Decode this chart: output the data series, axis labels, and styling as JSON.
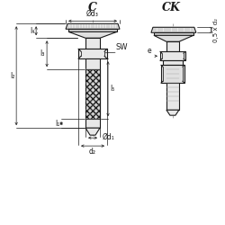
{
  "bg_color": "#ffffff",
  "line_color": "#1a1a1a",
  "dim_color": "#1a1a1a",
  "title_C": "C",
  "title_CK": "CK",
  "label_d3": "Ød₃",
  "label_d1": "Ød₁",
  "label_d2": "d₂",
  "label_SW": "SW",
  "label_l1": "l₁",
  "label_l2": "l₂",
  "label_l3": "l₃",
  "label_l4": "l₄",
  "label_l5": "l₅",
  "label_e": "e",
  "label_05d2": "0,5 x d₂"
}
